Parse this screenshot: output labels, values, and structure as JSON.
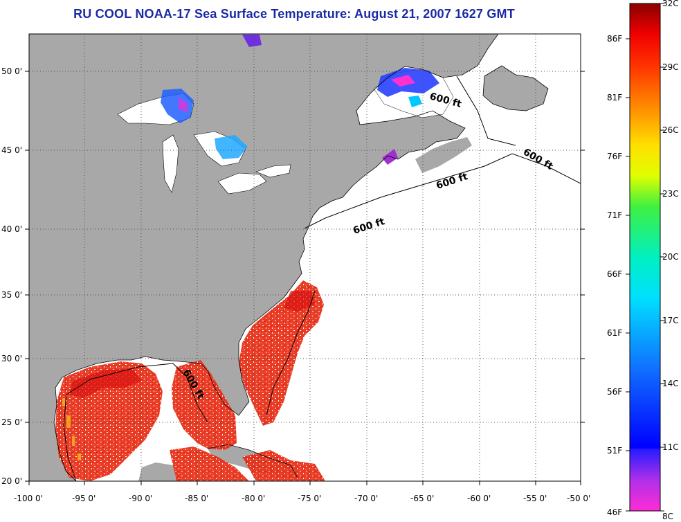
{
  "title": "RU COOL  NOAA-17  Sea Surface Temperature:  August 21, 2007 1627 GMT",
  "map": {
    "lon_range": [
      -100,
      -50
    ],
    "lat_range": [
      20,
      52.5
    ],
    "lon_ticks": [
      "-100 0'",
      "-95 0'",
      "-90 0'",
      "-85 0'",
      "-80 0'",
      "-75 0'",
      "-70 0'",
      "-65 0'",
      "-60 0'",
      "-55 0'",
      "-50 0'"
    ],
    "lat_ticks": [
      "20 0'",
      "25 0'",
      "30 0'",
      "35 0'",
      "40 0'",
      "45 0'",
      "50 0'"
    ],
    "contour_labels": [
      "600 ft",
      "600 ft",
      "600 ft",
      "600 ft",
      "600 ft"
    ],
    "colors": {
      "land": "#a8a8a8",
      "water": "#ffffff",
      "grid": "#555555"
    }
  },
  "colorbar": {
    "celsius": [
      "32C",
      "29C",
      "26C",
      "23C",
      "20C",
      "17C",
      "14C",
      "11C",
      "8C"
    ],
    "fahrenheit": [
      "86F",
      "81F",
      "76F",
      "71F",
      "66F",
      "61F",
      "56F",
      "51F",
      "46F"
    ],
    "c_range": [
      8,
      32
    ],
    "f_range": [
      46.4,
      89.6
    ]
  }
}
